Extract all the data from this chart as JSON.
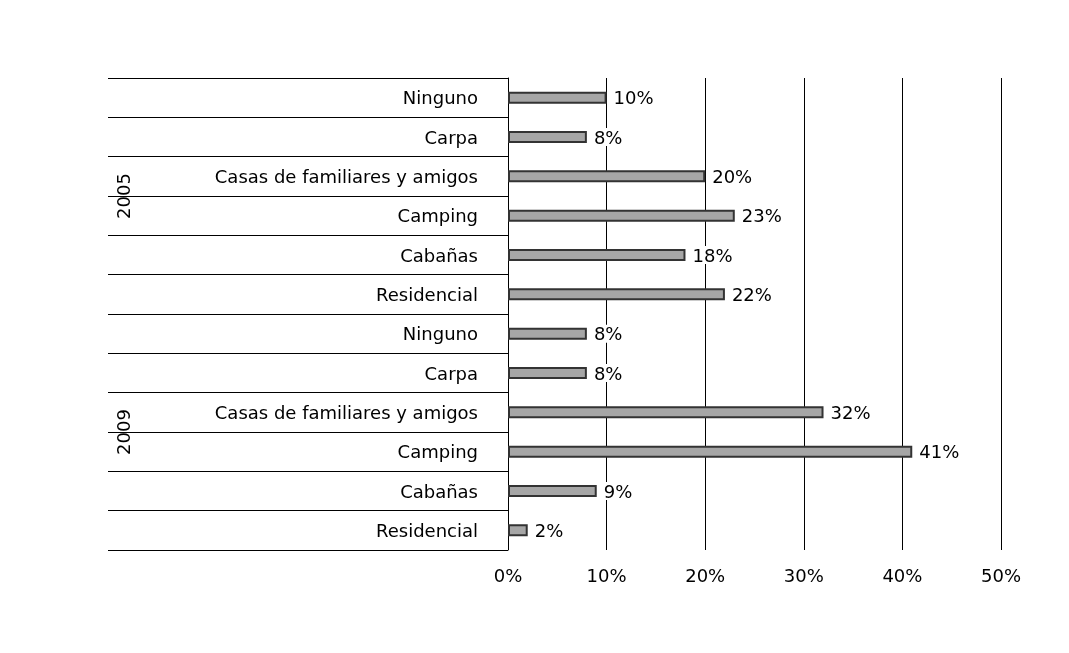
{
  "chart_data": {
    "type": "bar",
    "orientation": "horizontal",
    "categories": [
      "Ninguno",
      "Carpa",
      "Casas de familiares y amigos",
      "Camping",
      "Cabañas",
      "Residencial",
      "Ninguno",
      "Carpa",
      "Casas de familiares y amigos",
      "Camping",
      "Cabañas",
      "Residencial"
    ],
    "values": [
      10,
      8,
      20,
      23,
      18,
      22,
      8,
      8,
      32,
      41,
      9,
      2
    ],
    "value_labels": [
      "10%",
      "8%",
      "20%",
      "23%",
      "18%",
      "22%",
      "8%",
      "8%",
      "32%",
      "41%",
      "9%",
      "2%"
    ],
    "color": "#a6a6a6",
    "xlim": [
      0,
      50
    ],
    "xticks": [
      {
        "value": 0,
        "label": "0%"
      },
      {
        "value": 10,
        "label": "10%"
      },
      {
        "value": 20,
        "label": "20%"
      },
      {
        "value": 30,
        "label": "30%"
      },
      {
        "value": 40,
        "label": "40%"
      },
      {
        "value": 50,
        "label": "50%"
      }
    ],
    "grid": "x",
    "annotations": [
      "2005",
      "2009"
    ]
  }
}
